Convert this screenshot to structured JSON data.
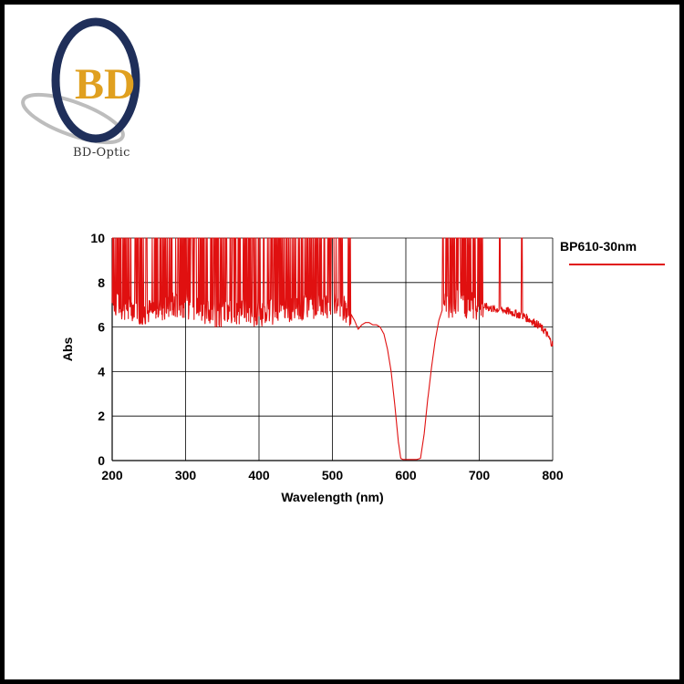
{
  "logo": {
    "letters": "BD",
    "brand": "BD-Optic"
  },
  "chart_data": {
    "type": "line",
    "xlabel": "Wavelength (nm)",
    "ylabel": "Abs",
    "xlim": [
      200,
      800
    ],
    "ylim": [
      0,
      10
    ],
    "xticks": [
      200,
      300,
      400,
      500,
      600,
      700,
      800
    ],
    "yticks": [
      0,
      2,
      4,
      6,
      8,
      10
    ],
    "grid": true,
    "legend": "top-right",
    "series": [
      {
        "name": "BP610-30nm",
        "color": "#e01010",
        "x": [
          200,
          210,
          220,
          230,
          240,
          260,
          280,
          300,
          320,
          340,
          360,
          380,
          400,
          420,
          440,
          460,
          480,
          500,
          515,
          525,
          530,
          535,
          540,
          545,
          550,
          555,
          560,
          565,
          570,
          575,
          580,
          585,
          590,
          593,
          596,
          600,
          605,
          610,
          615,
          620,
          625,
          630,
          635,
          640,
          645,
          650,
          655,
          660,
          670,
          680,
          690,
          700,
          710,
          720,
          730,
          740,
          750,
          760,
          770,
          780,
          790,
          800
        ],
        "y": [
          7.0,
          6.9,
          6.8,
          6.9,
          6.6,
          6.8,
          7.0,
          6.9,
          6.8,
          6.6,
          6.6,
          6.7,
          6.6,
          6.7,
          6.8,
          6.9,
          7.0,
          7.0,
          6.9,
          6.6,
          6.3,
          5.9,
          6.1,
          6.2,
          6.2,
          6.1,
          6.1,
          6.0,
          5.7,
          5.0,
          4.0,
          2.5,
          0.8,
          0.1,
          0.05,
          0.05,
          0.05,
          0.05,
          0.05,
          0.1,
          1.2,
          2.8,
          4.2,
          5.4,
          6.3,
          6.8,
          7.0,
          7.0,
          7.1,
          7.0,
          7.0,
          6.9,
          6.9,
          6.8,
          6.8,
          6.7,
          6.6,
          6.5,
          6.3,
          6.1,
          5.8,
          5.2
        ]
      }
    ],
    "saturated_segments": [
      [
        200,
        525
      ],
      [
        650,
        705
      ]
    ],
    "spikes_x": [
      728,
      758
    ]
  }
}
